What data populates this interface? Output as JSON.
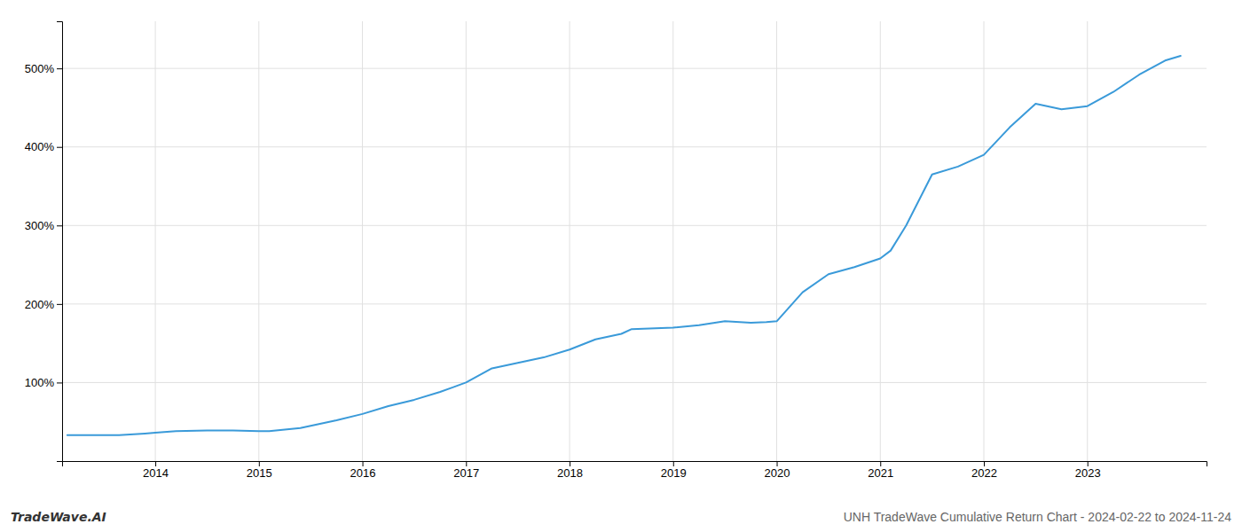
{
  "chart_data": {
    "type": "line",
    "title": "UNH TradeWave Cumulative Return Chart - 2024-02-22 to 2024-11-24",
    "annotations": [
      "TradeWave.AI"
    ],
    "x": [
      2013.15,
      2013.4,
      2013.65,
      2013.9,
      2014.0,
      2014.2,
      2014.5,
      2014.75,
      2015.0,
      2015.1,
      2015.4,
      2015.75,
      2016.0,
      2016.25,
      2016.5,
      2016.75,
      2017.0,
      2017.25,
      2017.5,
      2017.75,
      2018.0,
      2018.25,
      2018.5,
      2018.6,
      2019.0,
      2019.25,
      2019.5,
      2019.75,
      2019.9,
      2020.0,
      2020.25,
      2020.5,
      2020.75,
      2021.0,
      2021.1,
      2021.25,
      2021.5,
      2021.75,
      2022.0,
      2022.25,
      2022.5,
      2022.75,
      2023.0,
      2023.25,
      2023.5,
      2023.75,
      2023.9
    ],
    "values": [
      33,
      33,
      33,
      35,
      36,
      38,
      39,
      39,
      38,
      38,
      42,
      52,
      60,
      70,
      78,
      88,
      100,
      118,
      125,
      132,
      142,
      155,
      162,
      168,
      170,
      173,
      178,
      176,
      177,
      178,
      215,
      238,
      247,
      258,
      268,
      300,
      365,
      375,
      390,
      425,
      455,
      448,
      452,
      470,
      492,
      510,
      516
    ],
    "color": "#3a9ad9",
    "xlim": [
      2013.1,
      2024.15
    ],
    "xticks": [
      2014,
      2015,
      2016,
      2017,
      2018,
      2019,
      2020,
      2021,
      2022,
      2023
    ],
    "ylim": [
      0,
      560
    ],
    "yticks": [
      {
        "value": 100,
        "label": "100%"
      },
      {
        "value": 200,
        "label": "200%"
      },
      {
        "value": 300,
        "label": "300%"
      },
      {
        "value": 400,
        "label": "400%"
      },
      {
        "value": 500,
        "label": "500%"
      }
    ],
    "grid": true
  }
}
